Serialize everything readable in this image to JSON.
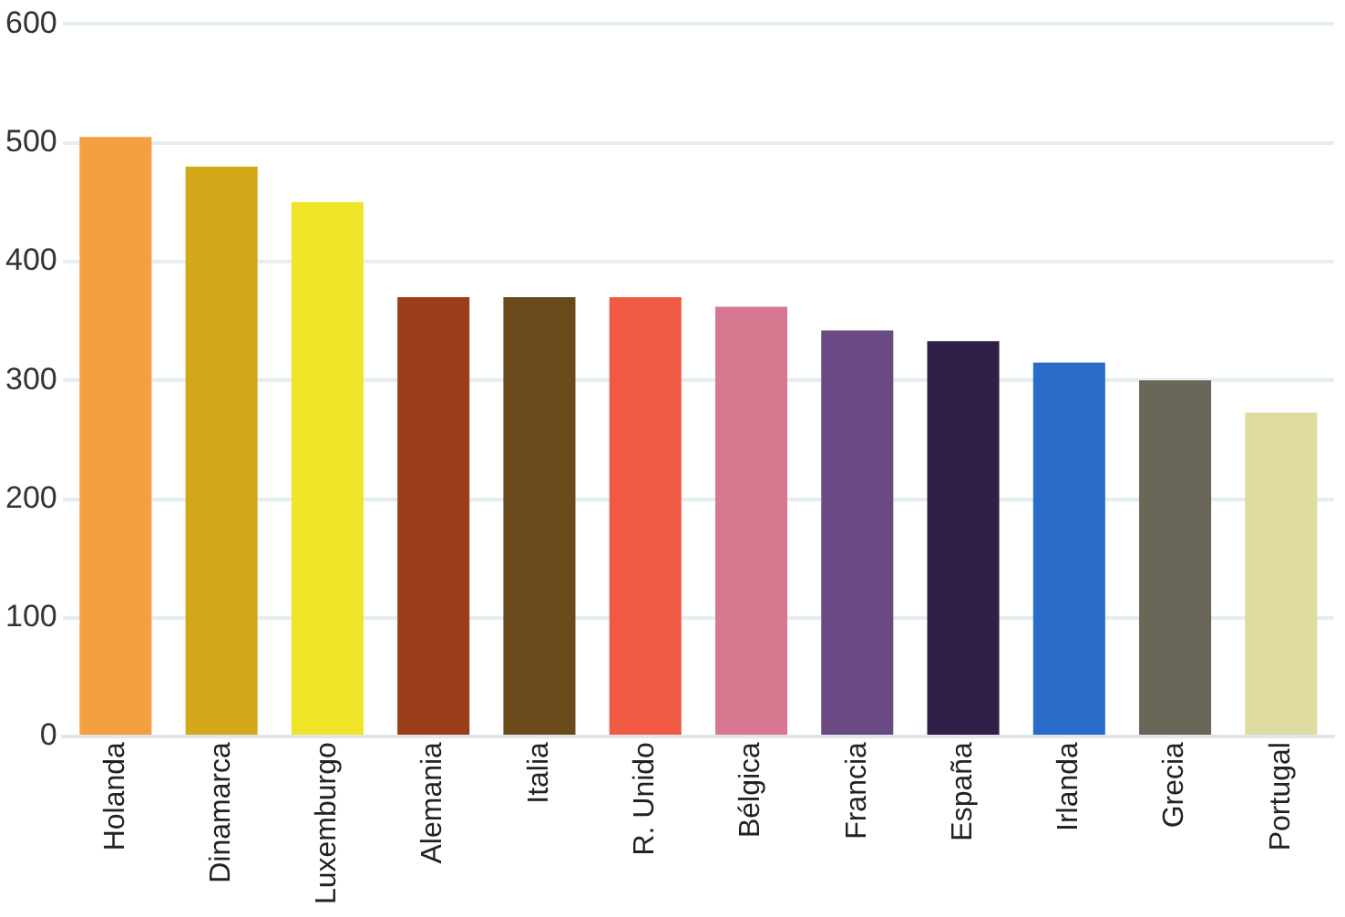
{
  "chart_data": {
    "type": "bar",
    "categories": [
      "Holanda",
      "Dinamarca",
      "Luxemburgo",
      "Alemania",
      "Italia",
      "R. Unido",
      "Bélgica",
      "Francia",
      "España",
      "Irlanda",
      "Grecia",
      "Portugal"
    ],
    "values": [
      505,
      480,
      450,
      370,
      370,
      370,
      362,
      342,
      333,
      315,
      300,
      273
    ],
    "colors": [
      "#f5a040",
      "#d4a818",
      "#f0e428",
      "#9a3e1a",
      "#6a4a1a",
      "#f05a44",
      "#d87890",
      "#6a4a82",
      "#302048",
      "#2a6ac8",
      "#6a6658",
      "#dedca0"
    ],
    "ylim": [
      0,
      600
    ],
    "yticks": [
      0,
      100,
      200,
      300,
      400,
      500,
      600
    ],
    "grid": "y"
  }
}
